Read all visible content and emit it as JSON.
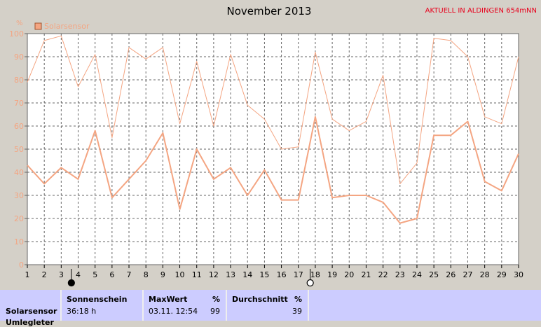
{
  "chart_data": {
    "type": "line",
    "title": "November 2013",
    "station": "AKTUELL IN ALDINGEN 654mNN",
    "ylabel": "%",
    "ylim": [
      0,
      100
    ],
    "yticks": [
      0,
      10,
      20,
      30,
      40,
      50,
      60,
      70,
      80,
      90,
      100
    ],
    "x": [
      1,
      2,
      3,
      4,
      5,
      6,
      7,
      8,
      9,
      10,
      11,
      12,
      13,
      14,
      15,
      16,
      17,
      18,
      19,
      20,
      21,
      22,
      23,
      24,
      25,
      26,
      27,
      28,
      29,
      30
    ],
    "xlim": [
      1,
      30
    ],
    "grid": true,
    "legend": "top-left",
    "series": [
      {
        "name": "Solarsensor",
        "role": "max",
        "color": "#f4a582",
        "values": [
          79,
          97,
          99,
          77,
          91,
          55,
          94,
          89,
          94,
          61,
          88,
          60,
          91,
          69,
          63,
          50,
          51,
          92,
          63,
          58,
          62,
          82,
          35,
          44,
          98,
          97,
          90,
          64,
          61,
          90
        ]
      },
      {
        "name": "Solarsensor",
        "role": "avg",
        "color": "#f4a582",
        "values": [
          43,
          35,
          42,
          37,
          58,
          29,
          37,
          45,
          57,
          24,
          50,
          37,
          42,
          30,
          41,
          28,
          28,
          64,
          29,
          30,
          30,
          27,
          18,
          20,
          56,
          56,
          62,
          36,
          32,
          48
        ]
      }
    ],
    "moon_markers": [
      {
        "day": 3.6,
        "phase": "new-moon"
      },
      {
        "day": 17.7,
        "phase": "full-moon"
      }
    ]
  },
  "table": {
    "row_label_1": "Solarsensor",
    "row_label_2": "Umlegleter",
    "sun_header": "Sonnenschein",
    "sun_value": "36:18 h",
    "max_header": "MaxWert",
    "max_unit": "%",
    "max_date": "03.11.  12:54",
    "max_value": "99",
    "avg_header": "Durchschnitt",
    "avg_unit": "%",
    "avg_value": "39"
  }
}
